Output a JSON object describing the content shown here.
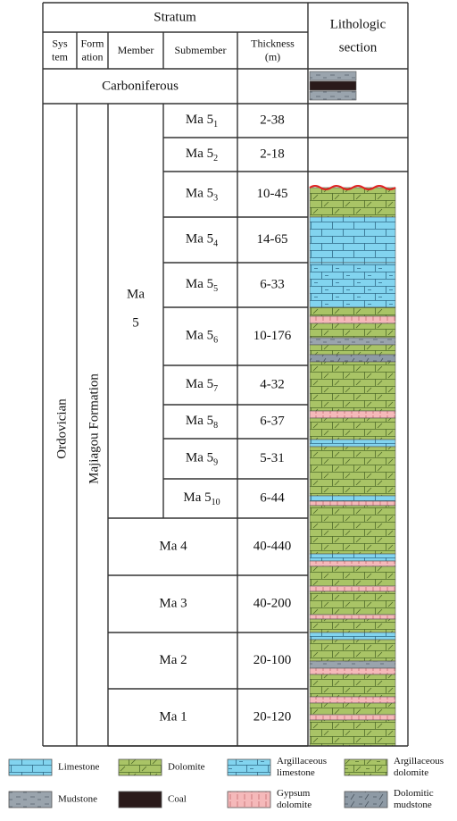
{
  "header": {
    "stratum": "Stratum",
    "lithologic_section": [
      "Lithologic",
      "section"
    ],
    "columns": [
      [
        "Sys",
        "tem"
      ],
      [
        "Form",
        "ation"
      ],
      [
        "Member"
      ],
      [
        "Submember"
      ],
      [
        "Thickness",
        "(m)"
      ]
    ]
  },
  "carboniferous": "Carboniferous",
  "system": "Ordovician",
  "formation": "Majiagou Formation",
  "member": [
    "Ma",
    "5"
  ],
  "submembers": [
    {
      "name": "Ma 5",
      "sub": "1",
      "thickness": "2-38"
    },
    {
      "name": "Ma 5",
      "sub": "2",
      "thickness": "2-18"
    },
    {
      "name": "Ma 5",
      "sub": "3",
      "thickness": "10-45"
    },
    {
      "name": "Ma 5",
      "sub": "4",
      "thickness": "14-65"
    },
    {
      "name": "Ma 5",
      "sub": "5",
      "thickness": "6-33"
    },
    {
      "name": "Ma 5",
      "sub": "6",
      "thickness": "10-176"
    },
    {
      "name": "Ma 5",
      "sub": "7",
      "thickness": "4-32"
    },
    {
      "name": "Ma 5",
      "sub": "8",
      "thickness": "6-37"
    },
    {
      "name": "Ma 5",
      "sub": "9",
      "thickness": "5-31"
    },
    {
      "name": "Ma 5",
      "sub": "10",
      "thickness": "6-44"
    }
  ],
  "members": [
    {
      "name": "Ma  4",
      "thickness": "40-440"
    },
    {
      "name": "Ma  3",
      "thickness": "40-200"
    },
    {
      "name": "Ma  2",
      "thickness": "20-100"
    },
    {
      "name": "Ma  1",
      "thickness": "20-120"
    }
  ],
  "legend": [
    {
      "label": [
        "Limestone"
      ]
    },
    {
      "label": [
        "Dolomite"
      ]
    },
    {
      "label": [
        "Argillaceous",
        "limestone"
      ]
    },
    {
      "label": [
        "Argillaceous",
        "dolomite"
      ]
    },
    {
      "label": [
        "Mudstone"
      ]
    },
    {
      "label": [
        "Coal"
      ]
    },
    {
      "label": [
        "Gypsum",
        "dolomite"
      ]
    },
    {
      "label": [
        "Dolomitic",
        "mudstone"
      ]
    }
  ]
}
